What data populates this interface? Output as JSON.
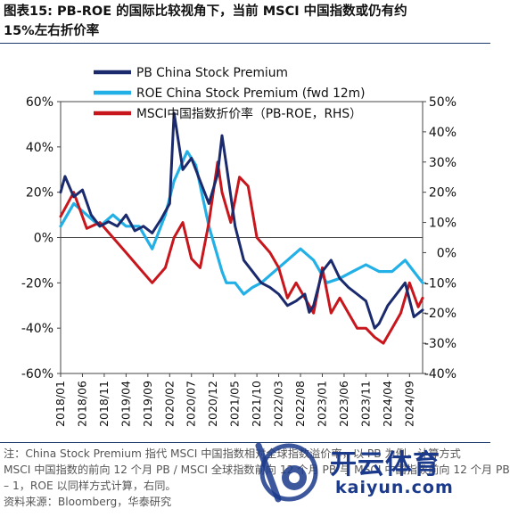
{
  "title": {
    "line1": "图表15:  PB-ROE 的国际比较视角下，当前 MSCI 中国指数或仍有约",
    "line2": "15%左右折价率"
  },
  "colors": {
    "pb": "#1a2a6c",
    "roe": "#22b0e6",
    "msci": "#c8161d"
  },
  "chart_data": {
    "type": "line",
    "x_tick_labels": [
      "2018/01",
      "2018/06",
      "2018/11",
      "2019/04",
      "2019/09",
      "2020/02",
      "2020/07",
      "2020/12",
      "2021/05",
      "2021/10",
      "2022/03",
      "2022/08",
      "2023/01",
      "2023/06",
      "2023/11",
      "2024/04",
      "2024/09"
    ],
    "x_start": "2018/01",
    "x_end": "2024/12",
    "left_axis": {
      "ylim": [
        -60,
        60
      ],
      "ticks": [
        "60%",
        "40%",
        "20%",
        "0%",
        "-20%",
        "-40%",
        "-60%"
      ]
    },
    "right_axis": {
      "ylim": [
        -40,
        50
      ],
      "ticks": [
        "50%",
        "40%",
        "30%",
        "20%",
        "10%",
        "0%",
        "-10%",
        "-20%",
        "-30%",
        "-40%"
      ]
    },
    "legend": [
      "PB China Stock Premium",
      "ROE China Stock Premium (fwd 12m)",
      "MSCI中国指数折价率（PB-ROE，RHS）"
    ],
    "series": [
      {
        "name": "PB China Stock Premium",
        "axis": "left",
        "x": [
          "2018/01",
          "2018/02",
          "2018/04",
          "2018/06",
          "2018/08",
          "2018/10",
          "2018/12",
          "2019/02",
          "2019/04",
          "2019/06",
          "2019/08",
          "2019/10",
          "2019/12",
          "2020/02",
          "2020/03",
          "2020/05",
          "2020/07",
          "2020/09",
          "2020/11",
          "2021/01",
          "2021/02",
          "2021/03",
          "2021/05",
          "2021/07",
          "2021/09",
          "2021/11",
          "2022/01",
          "2022/03",
          "2022/05",
          "2022/07",
          "2022/09",
          "2022/10",
          "2022/11",
          "2023/01",
          "2023/03",
          "2023/05",
          "2023/07",
          "2023/09",
          "2023/11",
          "2024/01",
          "2024/02",
          "2024/04",
          "2024/06",
          "2024/08",
          "2024/10",
          "2024/12"
        ],
        "y": [
          20,
          27,
          18,
          21,
          10,
          5,
          7,
          5,
          10,
          3,
          5,
          2,
          8,
          15,
          55,
          30,
          35,
          25,
          15,
          28,
          45,
          32,
          5,
          -10,
          -15,
          -20,
          -22,
          -25,
          -30,
          -28,
          -25,
          -33,
          -30,
          -15,
          -10,
          -18,
          -22,
          -25,
          -28,
          -40,
          -38,
          -30,
          -25,
          -20,
          -35,
          -32
        ]
      },
      {
        "name": "ROE China Stock Premium (fwd 12m)",
        "axis": "left",
        "x": [
          "2018/01",
          "2018/04",
          "2018/07",
          "2018/10",
          "2019/01",
          "2019/04",
          "2019/07",
          "2019/10",
          "2020/01",
          "2020/03",
          "2020/06",
          "2020/08",
          "2020/11",
          "2021/02",
          "2021/03",
          "2021/05",
          "2021/07",
          "2021/09",
          "2021/11",
          "2022/02",
          "2022/05",
          "2022/08",
          "2022/11",
          "2023/02",
          "2023/05",
          "2023/08",
          "2023/11",
          "2024/02",
          "2024/05",
          "2024/08",
          "2024/10",
          "2024/12"
        ],
        "y": [
          5,
          15,
          10,
          5,
          10,
          5,
          5,
          -5,
          10,
          25,
          38,
          32,
          5,
          -15,
          -20,
          -20,
          -25,
          -22,
          -20,
          -15,
          -10,
          -5,
          -10,
          -20,
          -18,
          -15,
          -12,
          -15,
          -15,
          -10,
          -15,
          -20
        ]
      },
      {
        "name": "MSCI中国指数折价率（PB-ROE，RHS）",
        "axis": "right",
        "x": [
          "2018/01",
          "2018/04",
          "2018/07",
          "2018/10",
          "2019/01",
          "2019/04",
          "2019/07",
          "2019/10",
          "2020/01",
          "2020/03",
          "2020/05",
          "2020/07",
          "2020/09",
          "2020/11",
          "2021/01",
          "2021/02",
          "2021/04",
          "2021/06",
          "2021/08",
          "2021/10",
          "2022/01",
          "2022/03",
          "2022/05",
          "2022/07",
          "2022/09",
          "2022/11",
          "2023/01",
          "2023/03",
          "2023/05",
          "2023/07",
          "2023/09",
          "2023/11",
          "2024/01",
          "2024/03",
          "2024/05",
          "2024/07",
          "2024/09",
          "2024/11",
          "2024/12"
        ],
        "y": [
          12,
          20,
          8,
          10,
          5,
          0,
          -5,
          -10,
          -5,
          5,
          10,
          -2,
          -5,
          10,
          30,
          20,
          10,
          25,
          22,
          5,
          0,
          -5,
          -15,
          -10,
          -15,
          -20,
          -5,
          -20,
          -15,
          -20,
          -25,
          -25,
          -28,
          -30,
          -25,
          -20,
          -10,
          -18,
          -15
        ]
      }
    ]
  },
  "notes": {
    "line1": "注：China Stock Premium 指代 MSCI 中国指数相对全球指数溢价率，以 PB 为例，计算方式",
    "line2": "MSCI 中国指数的前向 12 个月 PB / MSCI 全球指数前向 12 个月 PB 与 MSCI 中国指数前向 12 个月 PB",
    "line3": "– 1，ROE 以同样方式计算，右同。",
    "line4": "资料来源：Bloomberg，华泰研究"
  },
  "watermark": {
    "cn": "开云体育",
    "en": "kaiyun.com"
  }
}
